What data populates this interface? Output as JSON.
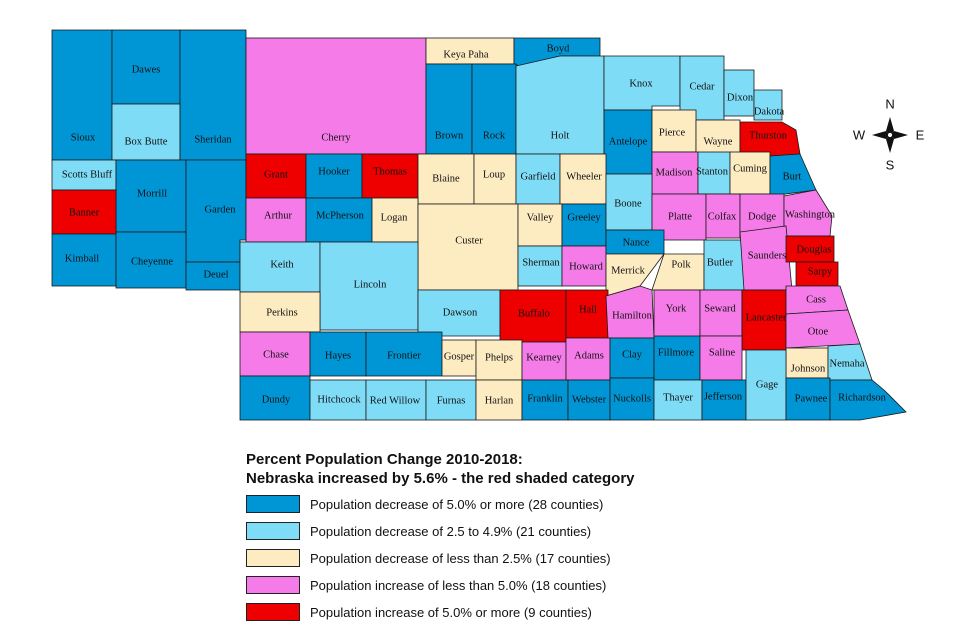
{
  "colors": {
    "c1": "#0096d6",
    "c2": "#7fdcf7",
    "c3": "#fdebc2",
    "c4": "#f57ce8",
    "c5": "#ee0000"
  },
  "compass": {
    "n": "N",
    "s": "S",
    "e": "E",
    "w": "W"
  },
  "legend": {
    "title_line1": "Percent Population Change 2010-2018:",
    "title_line2": "Nebraska increased by 5.6% - the red shaded category",
    "items": [
      {
        "category": "c1",
        "label": "Population decrease of 5.0% or more (28 counties)"
      },
      {
        "category": "c2",
        "label": "Population decrease of 2.5 to 4.9% (21 counties)"
      },
      {
        "category": "c3",
        "label": "Population decrease of less than 2.5% (17 counties)"
      },
      {
        "category": "c4",
        "label": "Population increase of less than 5.0% (18 counties)"
      },
      {
        "category": "c5",
        "label": "Population increase of 5.0% or more (9 counties)"
      }
    ]
  },
  "counties": [
    {
      "name": "Sioux",
      "category": "c1"
    },
    {
      "name": "Dawes",
      "category": "c1"
    },
    {
      "name": "Box Butte",
      "category": "c2"
    },
    {
      "name": "Sheridan",
      "category": "c1"
    },
    {
      "name": "Scotts Bluff",
      "category": "c2"
    },
    {
      "name": "Morrill",
      "category": "c1"
    },
    {
      "name": "Garden",
      "category": "c1"
    },
    {
      "name": "Banner",
      "category": "c5"
    },
    {
      "name": "Kimball",
      "category": "c1"
    },
    {
      "name": "Cheyenne",
      "category": "c1"
    },
    {
      "name": "Deuel",
      "category": "c1"
    },
    {
      "name": "Cherry",
      "category": "c4"
    },
    {
      "name": "Keya Paha",
      "category": "c3"
    },
    {
      "name": "Boyd",
      "category": "c1"
    },
    {
      "name": "Brown",
      "category": "c1"
    },
    {
      "name": "Rock",
      "category": "c1"
    },
    {
      "name": "Holt",
      "category": "c2"
    },
    {
      "name": "Knox",
      "category": "c2"
    },
    {
      "name": "Cedar",
      "category": "c2"
    },
    {
      "name": "Dixon",
      "category": "c2"
    },
    {
      "name": "Dakota",
      "category": "c2"
    },
    {
      "name": "Antelope",
      "category": "c1"
    },
    {
      "name": "Pierce",
      "category": "c3"
    },
    {
      "name": "Wayne",
      "category": "c3"
    },
    {
      "name": "Thurston",
      "category": "c5"
    },
    {
      "name": "Grant",
      "category": "c5"
    },
    {
      "name": "Hooker",
      "category": "c1"
    },
    {
      "name": "Thomas",
      "category": "c5"
    },
    {
      "name": "Blaine",
      "category": "c3"
    },
    {
      "name": "Loup",
      "category": "c3"
    },
    {
      "name": "Garfield",
      "category": "c2"
    },
    {
      "name": "Wheeler",
      "category": "c3"
    },
    {
      "name": "Madison",
      "category": "c4"
    },
    {
      "name": "Stanton",
      "category": "c2"
    },
    {
      "name": "Cuming",
      "category": "c3"
    },
    {
      "name": "Burt",
      "category": "c1"
    },
    {
      "name": "Arthur",
      "category": "c4"
    },
    {
      "name": "McPherson",
      "category": "c1"
    },
    {
      "name": "Logan",
      "category": "c3"
    },
    {
      "name": "Custer",
      "category": "c3"
    },
    {
      "name": "Valley",
      "category": "c3"
    },
    {
      "name": "Greeley",
      "category": "c1"
    },
    {
      "name": "Boone",
      "category": "c2"
    },
    {
      "name": "Platte",
      "category": "c4"
    },
    {
      "name": "Colfax",
      "category": "c4"
    },
    {
      "name": "Dodge",
      "category": "c4"
    },
    {
      "name": "Washington",
      "category": "c4"
    },
    {
      "name": "Keith",
      "category": "c2"
    },
    {
      "name": "Lincoln",
      "category": "c2"
    },
    {
      "name": "Sherman",
      "category": "c2"
    },
    {
      "name": "Howard",
      "category": "c4"
    },
    {
      "name": "Nance",
      "category": "c1"
    },
    {
      "name": "Merrick",
      "category": "c3"
    },
    {
      "name": "Polk",
      "category": "c3"
    },
    {
      "name": "Butler",
      "category": "c2"
    },
    {
      "name": "Saunders",
      "category": "c4"
    },
    {
      "name": "Douglas",
      "category": "c5"
    },
    {
      "name": "Sarpy",
      "category": "c5"
    },
    {
      "name": "Perkins",
      "category": "c3"
    },
    {
      "name": "Dawson",
      "category": "c2"
    },
    {
      "name": "Buffalo",
      "category": "c5"
    },
    {
      "name": "Hall",
      "category": "c5"
    },
    {
      "name": "Hamilton",
      "category": "c4"
    },
    {
      "name": "York",
      "category": "c4"
    },
    {
      "name": "Seward",
      "category": "c4"
    },
    {
      "name": "Lancaster",
      "category": "c5"
    },
    {
      "name": "Cass",
      "category": "c4"
    },
    {
      "name": "Otoe",
      "category": "c4"
    },
    {
      "name": "Chase",
      "category": "c4"
    },
    {
      "name": "Hayes",
      "category": "c1"
    },
    {
      "name": "Frontier",
      "category": "c1"
    },
    {
      "name": "Gosper",
      "category": "c3"
    },
    {
      "name": "Phelps",
      "category": "c3"
    },
    {
      "name": "Kearney",
      "category": "c4"
    },
    {
      "name": "Adams",
      "category": "c4"
    },
    {
      "name": "Clay",
      "category": "c1"
    },
    {
      "name": "Fillmore",
      "category": "c1"
    },
    {
      "name": "Saline",
      "category": "c4"
    },
    {
      "name": "Johnson",
      "category": "c3"
    },
    {
      "name": "Nemaha",
      "category": "c2"
    },
    {
      "name": "Dundy",
      "category": "c1"
    },
    {
      "name": "Hitchcock",
      "category": "c2"
    },
    {
      "name": "Red Willow",
      "category": "c2"
    },
    {
      "name": "Furnas",
      "category": "c2"
    },
    {
      "name": "Harlan",
      "category": "c3"
    },
    {
      "name": "Franklin",
      "category": "c1"
    },
    {
      "name": "Webster",
      "category": "c1"
    },
    {
      "name": "Nuckolls",
      "category": "c1"
    },
    {
      "name": "Thayer",
      "category": "c2"
    },
    {
      "name": "Jefferson",
      "category": "c1"
    },
    {
      "name": "Gage",
      "category": "c2"
    },
    {
      "name": "Pawnee",
      "category": "c1"
    },
    {
      "name": "Richardson",
      "category": "c1"
    }
  ]
}
